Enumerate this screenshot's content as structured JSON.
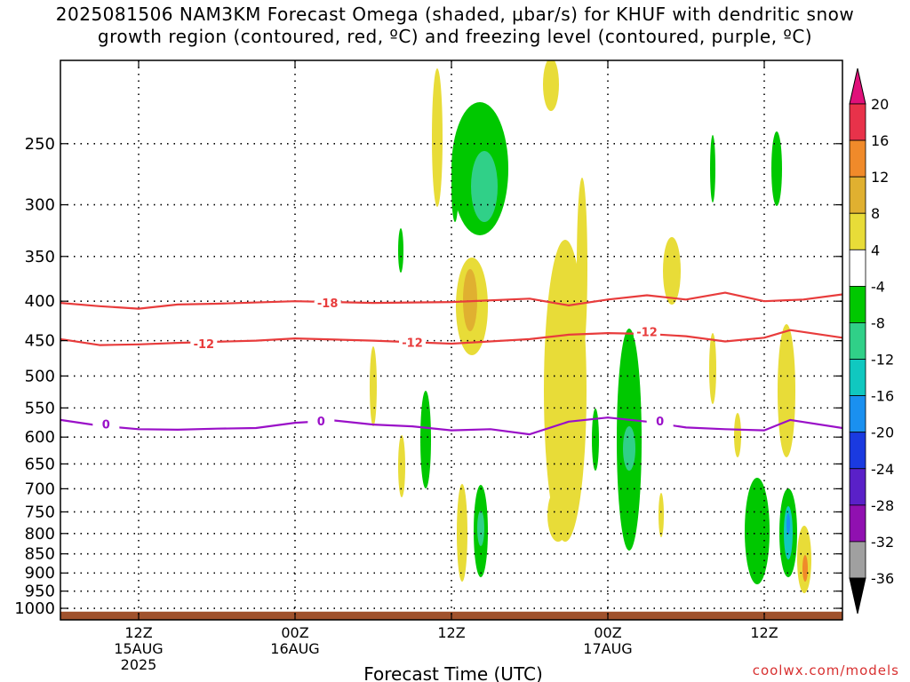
{
  "title": {
    "line1": "2025081506 NAM3KM Forecast Omega (shaded, μbar/s) for KHUF with dendritic snow",
    "line2": "growth region (contoured, red, ºC) and freezing level (contoured, purple, ºC)"
  },
  "credit": "coolwx.com/models",
  "chart_data": {
    "type": "time-height cross section",
    "xlabel": "Forecast Time (UTC)",
    "x_ticks": [
      {
        "hour": 12,
        "lines": [
          "12Z",
          "15AUG",
          "2025"
        ]
      },
      {
        "hour": 24,
        "lines": [
          "00Z",
          "16AUG"
        ]
      },
      {
        "hour": 36,
        "lines": [
          "12Z",
          ""
        ]
      },
      {
        "hour": 48,
        "lines": [
          "00Z",
          "17AUG"
        ]
      },
      {
        "hour": 60,
        "lines": [
          "12Z",
          ""
        ]
      }
    ],
    "x_range_hours": [
      6,
      66
    ],
    "ylabel": "",
    "y_scale": "log",
    "y_range_hPa": [
      1035,
      195
    ],
    "y_ticks": [
      250,
      300,
      350,
      400,
      450,
      500,
      550,
      600,
      650,
      700,
      750,
      800,
      850,
      900,
      950,
      1000
    ],
    "colorbar": {
      "labels": [
        "20",
        "16",
        "12",
        "8",
        "4",
        "-4",
        "-8",
        "-12",
        "-16",
        "-20",
        "-24",
        "-28",
        "-32",
        "-36"
      ],
      "colors": [
        "#e8324a",
        "#f08a2a",
        "#e0b030",
        "#e8dc38",
        "#ffffff",
        "#00c800",
        "#30d088",
        "#10c8c0",
        "#1a90f0",
        "#1a3ae0",
        "#5a20c8",
        "#9010b0",
        "#a0a0a0"
      ],
      "top_arrow_color": "#e0107a",
      "bottom_arrow_color": "#000000"
    },
    "contours": [
      {
        "label": "-18",
        "color": "#e83c3c",
        "points": [
          [
            6,
            402
          ],
          [
            9,
            406
          ],
          [
            12,
            409
          ],
          [
            15,
            404
          ],
          [
            18,
            403
          ],
          [
            24,
            400
          ],
          [
            30,
            402
          ],
          [
            36,
            401
          ],
          [
            42,
            397
          ],
          [
            45,
            405
          ],
          [
            48,
            398
          ],
          [
            51,
            393
          ],
          [
            54,
            398
          ],
          [
            57,
            390
          ],
          [
            60,
            400
          ],
          [
            63,
            398
          ],
          [
            66,
            392
          ]
        ],
        "labels_at": [
          [
            26.5,
            402
          ]
        ]
      },
      {
        "label": "-12",
        "color": "#e83c3c",
        "points": [
          [
            6,
            448
          ],
          [
            9,
            456
          ],
          [
            12,
            455
          ],
          [
            15,
            453
          ],
          [
            21,
            450
          ],
          [
            24,
            447
          ],
          [
            30,
            450
          ],
          [
            36,
            454
          ],
          [
            42,
            448
          ],
          [
            45,
            442
          ],
          [
            48,
            440
          ],
          [
            51,
            441
          ],
          [
            54,
            444
          ],
          [
            57,
            451
          ],
          [
            60,
            446
          ],
          [
            62,
            436
          ],
          [
            66,
            446
          ]
        ],
        "labels_at": [
          [
            17,
            454
          ],
          [
            33,
            452
          ],
          [
            51,
            438
          ]
        ]
      },
      {
        "label": "0",
        "color": "#9a10c8",
        "points": [
          [
            6,
            570
          ],
          [
            9,
            580
          ],
          [
            12,
            586
          ],
          [
            15,
            587
          ],
          [
            18,
            585
          ],
          [
            21,
            584
          ],
          [
            24,
            575
          ],
          [
            27,
            571
          ],
          [
            30,
            578
          ],
          [
            33,
            581
          ],
          [
            36,
            588
          ],
          [
            39,
            586
          ],
          [
            42,
            595
          ],
          [
            45,
            573
          ],
          [
            48,
            566
          ],
          [
            51,
            573
          ],
          [
            54,
            583
          ],
          [
            57,
            586
          ],
          [
            60,
            588
          ],
          [
            62,
            570
          ],
          [
            66,
            584
          ]
        ],
        "labels_at": [
          [
            9.5,
            577
          ],
          [
            26,
            572
          ],
          [
            52,
            572
          ]
        ]
      }
    ],
    "ground_level_hPa": 1010
  }
}
